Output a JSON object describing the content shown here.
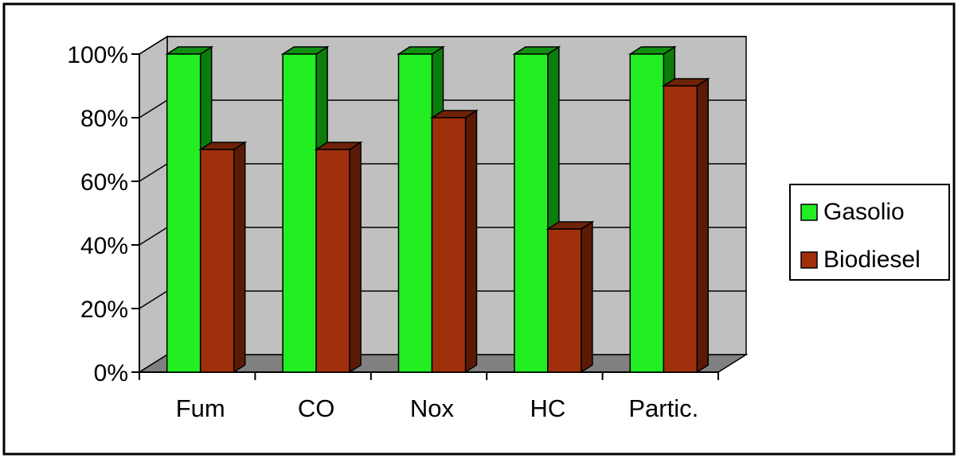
{
  "chart_data": {
    "type": "bar",
    "style": "3d-clustered-column",
    "categories": [
      "Fum",
      "CO",
      "Nox",
      "HC",
      "Partic."
    ],
    "series": [
      {
        "name": "Gasolio",
        "values": [
          100,
          100,
          100,
          100,
          100
        ],
        "color": "#22ee22",
        "side_color": "#0b7d0b",
        "top_color": "#118f11"
      },
      {
        "name": "Biodiesel",
        "values": [
          70,
          70,
          80,
          45,
          90
        ],
        "color": "#a0300c",
        "side_color": "#5a1b06",
        "top_color": "#6e2208"
      }
    ],
    "title": "",
    "xlabel": "",
    "ylabel": "",
    "ylim": [
      0,
      100
    ],
    "y_ticks": [
      "0%",
      "20%",
      "40%",
      "60%",
      "80%",
      "100%"
    ],
    "y_tick_values": [
      0,
      20,
      40,
      60,
      80,
      100
    ],
    "grid": true,
    "legend_position": "right",
    "wall_color": "#c0c0c0",
    "floor_color": "#808080"
  }
}
